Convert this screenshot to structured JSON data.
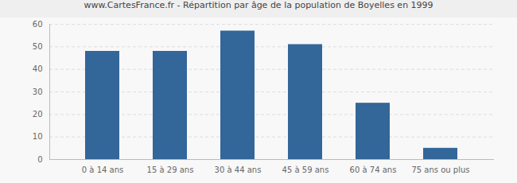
{
  "chart_data": {
    "type": "bar",
    "title": "www.CartesFrance.fr - Répartition par âge de la population de Boyelles en 1999",
    "categories": [
      "0 à 14 ans",
      "15 à 29 ans",
      "30 à 44 ans",
      "45 à 59 ans",
      "60 à 74 ans",
      "75 ans ou plus"
    ],
    "values": [
      48,
      48,
      57,
      51,
      25,
      5
    ],
    "color": "#336699",
    "ylim": [
      0,
      60
    ],
    "yticks": [
      0,
      10,
      20,
      30,
      40,
      50,
      60
    ],
    "grid": true
  }
}
